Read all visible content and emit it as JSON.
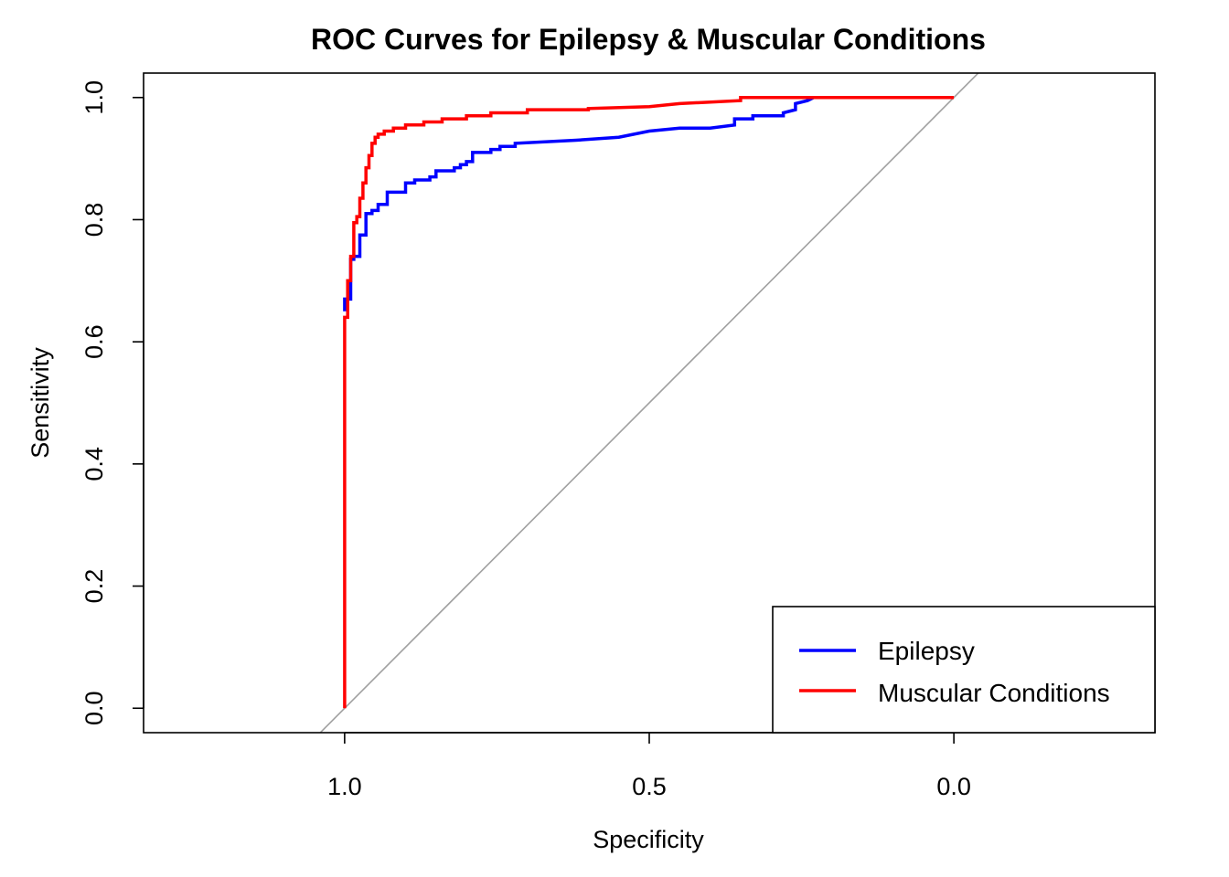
{
  "chart_data": {
    "type": "line",
    "title": "ROC Curves for Epilepsy & Muscular Conditions",
    "xlabel": "Specificity",
    "ylabel": "Sensitivity",
    "x_reversed": true,
    "xlim": [
      1.33,
      -0.33
    ],
    "ylim": [
      -0.04,
      1.04
    ],
    "x_ticks": [
      1.0,
      0.5,
      0.0
    ],
    "x_tick_labels": [
      "1.0",
      "0.5",
      "0.0"
    ],
    "y_ticks": [
      0.0,
      0.2,
      0.4,
      0.6,
      0.8,
      1.0
    ],
    "y_tick_labels": [
      "0.0",
      "0.2",
      "0.4",
      "0.6",
      "0.8",
      "1.0"
    ],
    "grid": false,
    "legend_position": "bottom-right",
    "reference_line": {
      "from": [
        1.0,
        0.0
      ],
      "to": [
        0.0,
        1.0
      ],
      "color": "#a0a0a0"
    },
    "series": [
      {
        "name": "Epilepsy",
        "color": "#0000ff",
        "specificity": [
          1.0,
          1.0,
          0.99,
          0.99,
          0.985,
          0.985,
          0.975,
          0.975,
          0.965,
          0.965,
          0.955,
          0.955,
          0.945,
          0.945,
          0.93,
          0.93,
          0.9,
          0.9,
          0.885,
          0.885,
          0.86,
          0.86,
          0.85,
          0.85,
          0.82,
          0.82,
          0.81,
          0.81,
          0.8,
          0.8,
          0.79,
          0.79,
          0.76,
          0.76,
          0.745,
          0.745,
          0.72,
          0.72,
          0.62,
          0.55,
          0.5,
          0.45,
          0.4,
          0.36,
          0.36,
          0.33,
          0.33,
          0.28,
          0.28,
          0.26,
          0.26,
          0.24,
          0.23
        ],
        "sensitivity": [
          0.65,
          0.67,
          0.67,
          0.735,
          0.735,
          0.74,
          0.74,
          0.775,
          0.775,
          0.81,
          0.81,
          0.815,
          0.815,
          0.825,
          0.825,
          0.845,
          0.845,
          0.86,
          0.86,
          0.865,
          0.865,
          0.87,
          0.87,
          0.88,
          0.88,
          0.885,
          0.885,
          0.89,
          0.89,
          0.895,
          0.895,
          0.91,
          0.91,
          0.915,
          0.915,
          0.92,
          0.92,
          0.925,
          0.93,
          0.935,
          0.945,
          0.95,
          0.95,
          0.955,
          0.965,
          0.965,
          0.97,
          0.97,
          0.975,
          0.98,
          0.99,
          0.995,
          1.0
        ]
      },
      {
        "name": "Muscular Conditions",
        "color": "#ff0000",
        "specificity": [
          1.0,
          1.0,
          0.995,
          0.995,
          0.99,
          0.99,
          0.985,
          0.985,
          0.98,
          0.98,
          0.975,
          0.975,
          0.97,
          0.97,
          0.965,
          0.965,
          0.96,
          0.96,
          0.955,
          0.955,
          0.95,
          0.95,
          0.945,
          0.945,
          0.935,
          0.935,
          0.92,
          0.92,
          0.9,
          0.9,
          0.87,
          0.87,
          0.84,
          0.84,
          0.8,
          0.8,
          0.76,
          0.76,
          0.7,
          0.7,
          0.6,
          0.6,
          0.5,
          0.45,
          0.35,
          0.35,
          0.28,
          0.2,
          0.1,
          0.0
        ],
        "sensitivity": [
          0.0,
          0.64,
          0.64,
          0.7,
          0.7,
          0.74,
          0.74,
          0.795,
          0.795,
          0.805,
          0.805,
          0.835,
          0.835,
          0.86,
          0.86,
          0.885,
          0.885,
          0.905,
          0.905,
          0.925,
          0.925,
          0.935,
          0.935,
          0.94,
          0.94,
          0.945,
          0.945,
          0.95,
          0.95,
          0.955,
          0.955,
          0.96,
          0.96,
          0.965,
          0.965,
          0.97,
          0.97,
          0.975,
          0.975,
          0.98,
          0.98,
          0.982,
          0.985,
          0.99,
          0.995,
          1.0,
          1.0,
          1.0,
          1.0,
          1.0
        ]
      }
    ]
  }
}
